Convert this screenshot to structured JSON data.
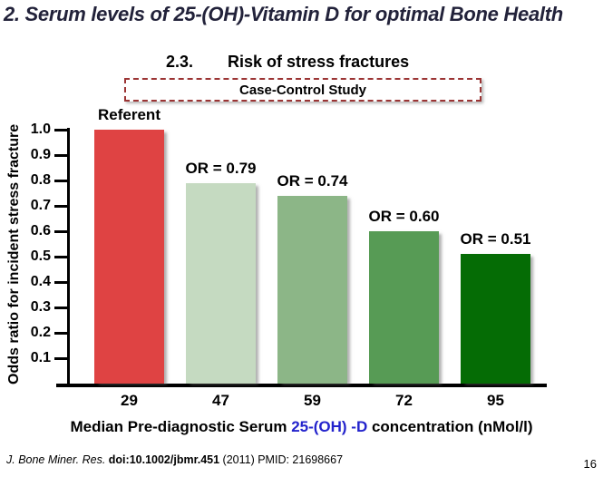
{
  "slide": {
    "title": "2. Serum levels of 25-(OH)-Vitamin D for optimal Bone Health",
    "section_number": "2.3.",
    "section_title": "Risk of stress fractures",
    "study_badge": "Case-Control Study",
    "page_number": "16"
  },
  "footer": {
    "journal": "J. Bone Miner. Res. ",
    "doi": "doi:10.1002/jbmr.451 ",
    "rest": "(2011) PMID: 21698667"
  },
  "colors": {
    "title_navy": "#22223a",
    "badge_border_red": "#9b3434",
    "xlabel_blue": "#2323cc"
  },
  "chart_data": {
    "type": "bar",
    "title": "Risk of stress fractures",
    "categories": [
      "29",
      "47",
      "59",
      "72",
      "95"
    ],
    "values": [
      1.0,
      0.79,
      0.74,
      0.6,
      0.51
    ],
    "bar_labels": [
      "Referent",
      "OR = 0.79",
      "OR = 0.74",
      "OR = 0.60",
      "OR = 0.51"
    ],
    "bar_colors": [
      "#df4343",
      "#c5dac1",
      "#8cb687",
      "#579b55",
      "#056c05"
    ],
    "ylabel": "Odds ratio for incident stress fracture",
    "xlabel_parts": {
      "pre": "Median Pre-diagnostic Serum ",
      "highlight": "25-(OH) -D",
      "post": " concentration (nMol/l)"
    },
    "yticks": [
      "1.0",
      "0.9",
      "0.8",
      "0.7",
      "0.6",
      "0.5",
      "0.4",
      "0.3",
      "0.2",
      "0.1"
    ],
    "ylim": [
      0,
      1.0
    ],
    "grid": false,
    "legend": false
  }
}
